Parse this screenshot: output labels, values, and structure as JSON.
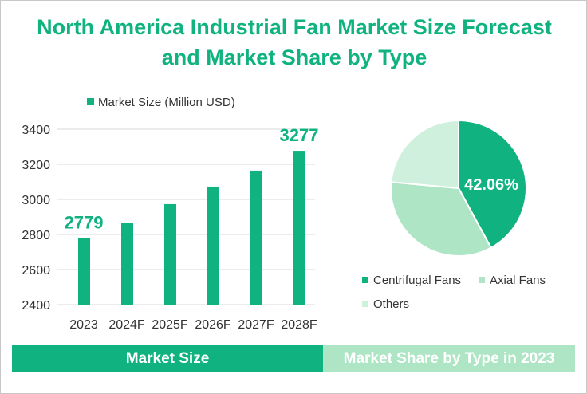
{
  "title_line1": "North America Industrial Fan Market Size Forecast",
  "title_line2": "and Market Share by Type",
  "chart_data": [
    {
      "type": "bar",
      "title": "Market Size",
      "legend": "Market Size (Million USD)",
      "legend_position": "top",
      "categories": [
        "2023",
        "2024F",
        "2025F",
        "2026F",
        "2027F",
        "2028F"
      ],
      "values": [
        2779,
        2868,
        2973,
        3073,
        3164,
        3277
      ],
      "data_labels": {
        "2023": "2779",
        "2028F": "3277"
      },
      "yticks": [
        "2400",
        "2600",
        "2800",
        "3000",
        "3200",
        "3400"
      ],
      "ylim": [
        2400,
        3400
      ],
      "grid": true,
      "color": "#10b37f"
    },
    {
      "type": "pie",
      "title": "Market Share by Type in 2023",
      "legend_position": "bottom",
      "labels": [
        "Centrifugal Fans",
        "Axial Fans",
        "Others"
      ],
      "values": [
        42.06,
        34.4,
        23.54
      ],
      "data_label": "42.06%",
      "colors": [
        "#10b37f",
        "#aee5c4",
        "#d0f0de"
      ]
    }
  ],
  "footer": {
    "left": "Market Size",
    "right": "Market Share by Type in 2023"
  }
}
